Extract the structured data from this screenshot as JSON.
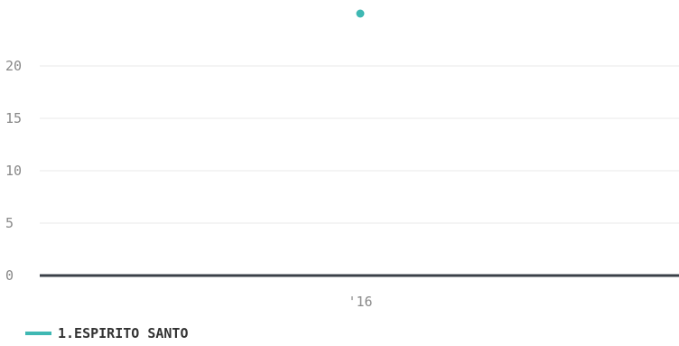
{
  "chart_data": {
    "type": "line",
    "x": [
      "'16"
    ],
    "series": [
      {
        "name": "1.ESPIRITO SANTO",
        "values": [
          25
        ],
        "color": "#3fb8b3"
      }
    ],
    "title": "",
    "xlabel": "",
    "ylabel": "",
    "ylim": [
      0,
      25
    ],
    "yticks": [
      "0",
      "5",
      "10",
      "15",
      "20"
    ],
    "grid": true,
    "legend": "bottom-left",
    "colors": {
      "grid": "#e8e8e8",
      "baseline": "#3a4048",
      "tick_text": "#888888",
      "legend_text": "#333333"
    }
  }
}
